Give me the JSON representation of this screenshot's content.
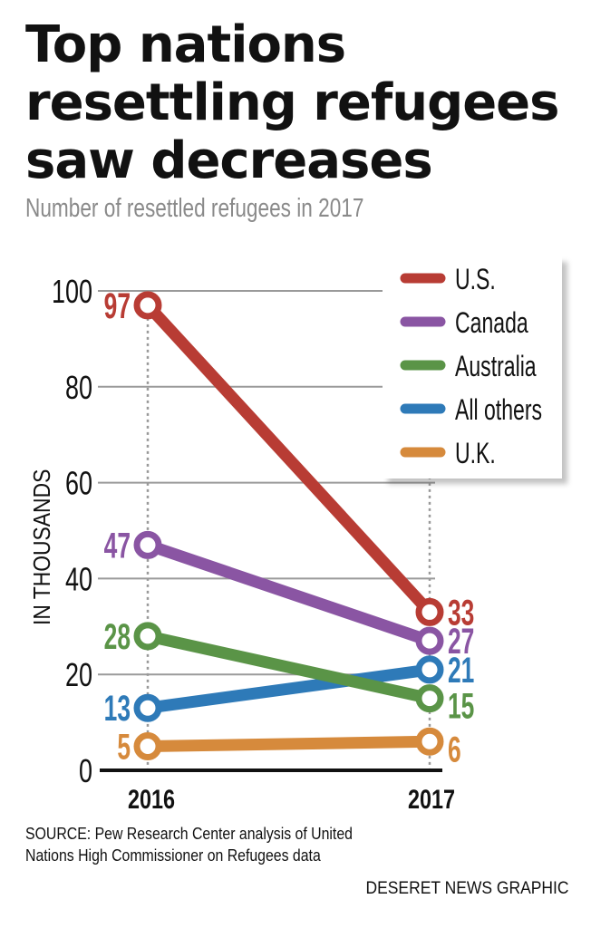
{
  "chart_data": {
    "type": "line",
    "title": "Top nations resettling refugees saw decreases",
    "title_lines": [
      "Top nations",
      "resettling refugees",
      "saw decreases"
    ],
    "subtitle": "Number of resettled refugees in 2017",
    "ylabel": "IN THOUSANDS",
    "xlabel": "",
    "categories": [
      "2016",
      "2017"
    ],
    "ylim": [
      0,
      100
    ],
    "yticks": [
      0,
      20,
      40,
      60,
      80,
      100
    ],
    "grid": true,
    "legend_position": "top-right",
    "series": [
      {
        "name": "U.S.",
        "values": [
          97,
          33
        ],
        "color": "#b83c34"
      },
      {
        "name": "Canada",
        "values": [
          47,
          27
        ],
        "color": "#8a55a3"
      },
      {
        "name": "Australia",
        "values": [
          28,
          15
        ],
        "color": "#5a9447"
      },
      {
        "name": "All others",
        "values": [
          13,
          21
        ],
        "color": "#2e7ab8"
      },
      {
        "name": "U.K.",
        "values": [
          5,
          6
        ],
        "color": "#d68a3c"
      }
    ]
  },
  "footer": {
    "source_lines": [
      "SOURCE: Pew Research Center analysis of United",
      "Nations High Commissioner on Refugees data"
    ],
    "credit": "DESERET NEWS GRAPHIC"
  }
}
